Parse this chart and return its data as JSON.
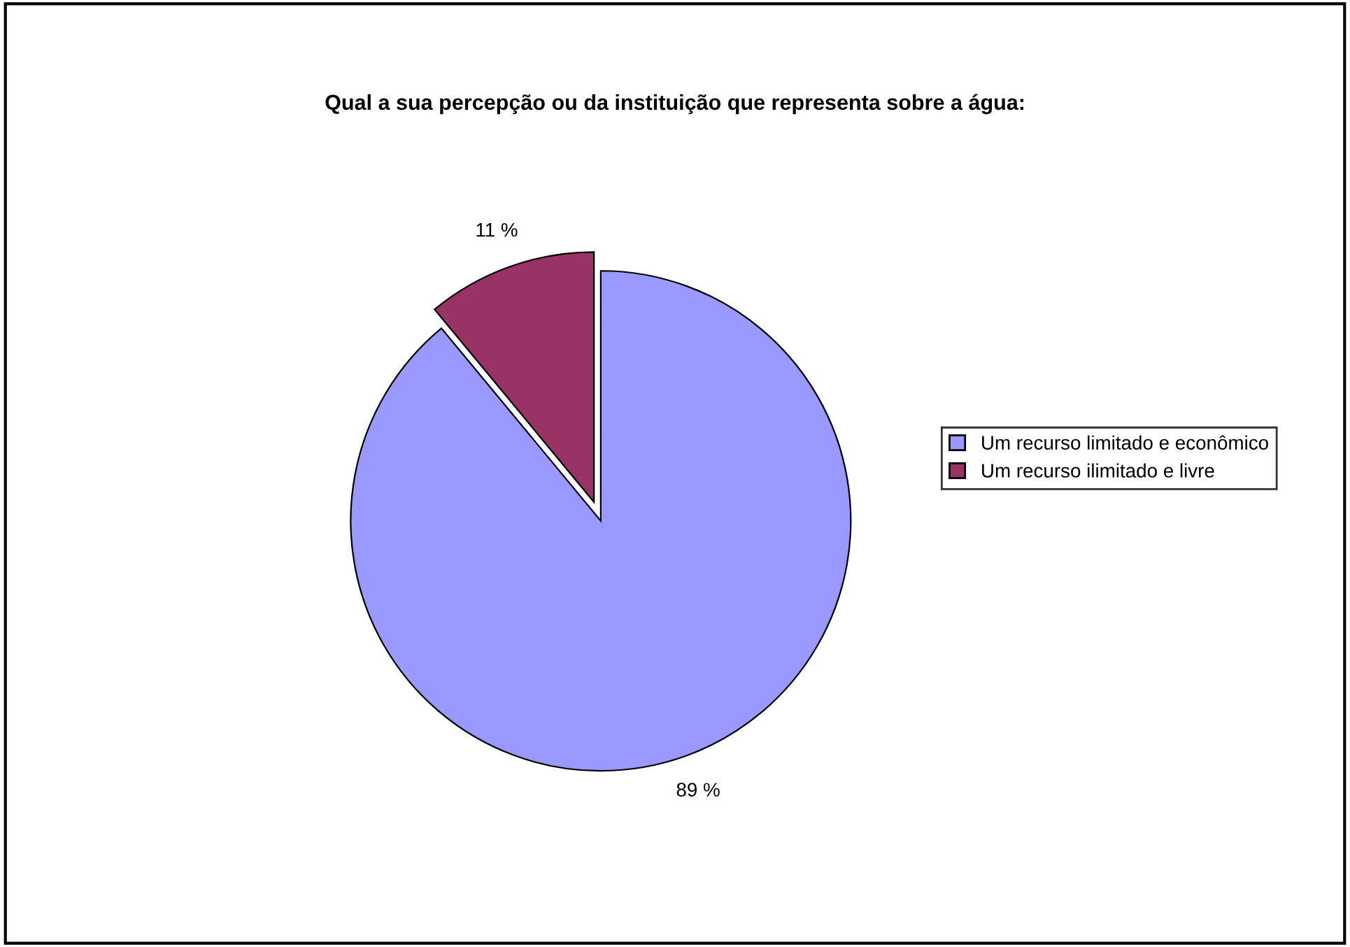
{
  "chart_data": {
    "type": "pie",
    "title": "Qual a sua percepção ou da instituição que representa sobre a água:",
    "categories": [
      "Um recurso limitado e econômico",
      "Um recurso ilimitado e livre"
    ],
    "values": [
      89,
      11
    ],
    "colors": [
      "#9999ff",
      "#993366"
    ],
    "value_labels": [
      "89 %",
      "11 %"
    ],
    "legend": "right"
  }
}
